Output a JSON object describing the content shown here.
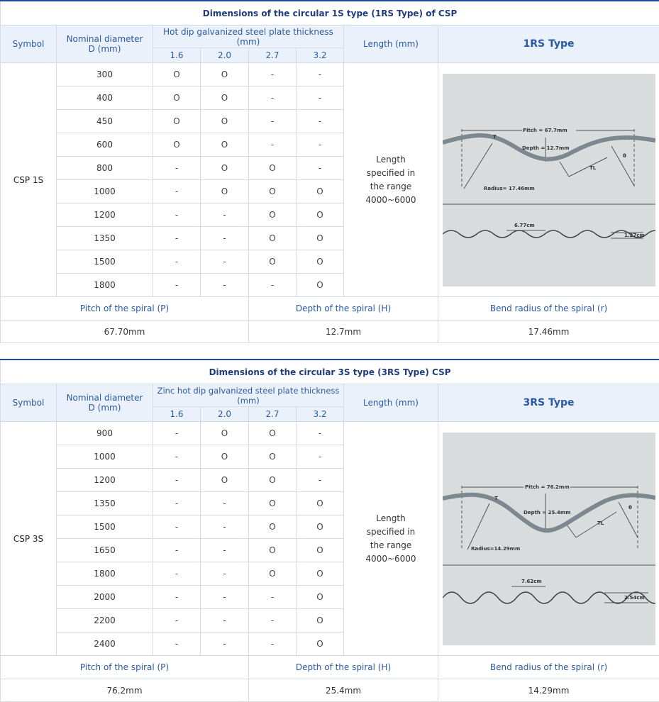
{
  "tables": [
    {
      "title": "Dimensions of the circular 1S type (1RS Type) of CSP",
      "headers": {
        "symbol": "Symbol",
        "nominal_diameter": "Nominal diameter D (mm)",
        "thickness": "Hot dip galvanized steel plate thickness (mm)",
        "thickness_cols": [
          "1.6",
          "2.0",
          "2.7",
          "3.2"
        ],
        "length": "Length (mm)",
        "type": "1RS Type"
      },
      "symbol_value": "CSP 1S",
      "length_value": "Length specified in the range 4000~6000",
      "rows": [
        {
          "d": "300",
          "t": [
            "O",
            "O",
            "-",
            "-"
          ]
        },
        {
          "d": "400",
          "t": [
            "O",
            "O",
            "-",
            "-"
          ]
        },
        {
          "d": "450",
          "t": [
            "O",
            "O",
            "-",
            "-"
          ]
        },
        {
          "d": "600",
          "t": [
            "O",
            "O",
            "-",
            "-"
          ]
        },
        {
          "d": "800",
          "t": [
            "-",
            "O",
            "O",
            "-"
          ]
        },
        {
          "d": "1000",
          "t": [
            "-",
            "O",
            "O",
            "O"
          ]
        },
        {
          "d": "1200",
          "t": [
            "-",
            "-",
            "O",
            "O"
          ]
        },
        {
          "d": "1350",
          "t": [
            "-",
            "-",
            "O",
            "O"
          ]
        },
        {
          "d": "1500",
          "t": [
            "-",
            "-",
            "O",
            "O"
          ]
        },
        {
          "d": "1800",
          "t": [
            "-",
            "-",
            "-",
            "O"
          ]
        }
      ],
      "diagram": {
        "pitch": "Pitch = 67.7mm",
        "depth": "Depth = 12.7mm",
        "radius": "Radius= 17.46mm",
        "t": "T",
        "tl": "TL",
        "theta": "θ",
        "wave_pitch": "6.77cm",
        "wave_depth": "1.27cm"
      },
      "bottom_headers": [
        "Pitch of the spiral (P)",
        "Depth of the spiral (H)",
        "Bend radius of the spiral (r)"
      ],
      "bottom_values": [
        "67.70mm",
        "12.7mm",
        "17.46mm"
      ]
    },
    {
      "title": "Dimensions of the circular 3S type (3RS Type) CSP",
      "headers": {
        "symbol": "Symbol",
        "nominal_diameter": "Nominal diameter D (mm)",
        "thickness": "Zinc hot dip galvanized steel plate thickness (mm)",
        "thickness_cols": [
          "1.6",
          "2.0",
          "2.7",
          "3.2"
        ],
        "length": "Length (mm)",
        "type": "3RS Type"
      },
      "symbol_value": "CSP 3S",
      "length_value": "Length specified in the range 4000~6000",
      "rows": [
        {
          "d": "900",
          "t": [
            "-",
            "O",
            "O",
            "-"
          ]
        },
        {
          "d": "1000",
          "t": [
            "-",
            "O",
            "O",
            "-"
          ]
        },
        {
          "d": "1200",
          "t": [
            "-",
            "O",
            "O",
            "-"
          ]
        },
        {
          "d": "1350",
          "t": [
            "-",
            "-",
            "O",
            "O"
          ]
        },
        {
          "d": "1500",
          "t": [
            "-",
            "-",
            "O",
            "O"
          ]
        },
        {
          "d": "1650",
          "t": [
            "-",
            "-",
            "O",
            "O"
          ]
        },
        {
          "d": "1800",
          "t": [
            "-",
            "-",
            "O",
            "O"
          ]
        },
        {
          "d": "2000",
          "t": [
            "-",
            "-",
            "-",
            "O"
          ]
        },
        {
          "d": "2200",
          "t": [
            "-",
            "-",
            "-",
            "O"
          ]
        },
        {
          "d": "2400",
          "t": [
            "-",
            "-",
            "-",
            "O"
          ]
        }
      ],
      "diagram": {
        "pitch": "Pitch = 76.2mm",
        "depth": "Depth = 25.4mm",
        "radius": "Radius=14.29mm",
        "t": "T",
        "tl": "TL",
        "theta": "θ",
        "wave_pitch": "7.62cm",
        "wave_depth": "2.54cm"
      },
      "bottom_headers": [
        "Pitch of the spiral (P)",
        "Depth of the spiral (H)",
        "Bend radius of the spiral (r)"
      ],
      "bottom_values": [
        "76.2mm",
        "25.4mm",
        "14.29mm"
      ]
    }
  ]
}
